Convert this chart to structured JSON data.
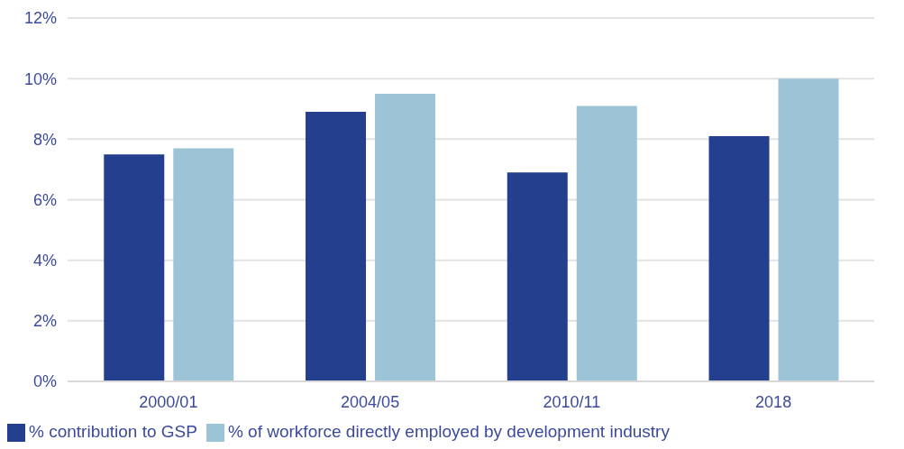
{
  "chart_data": {
    "type": "bar",
    "categories": [
      "2000/01",
      "2004/05",
      "2010/11",
      "2018"
    ],
    "series": [
      {
        "name": "% contribution to GSP",
        "color": "#243f8e",
        "values": [
          7.5,
          8.9,
          6.9,
          8.1
        ]
      },
      {
        "name": "% of workforce directly employed by development industry",
        "color": "#9cc4d6",
        "values": [
          7.7,
          9.5,
          9.1,
          10.0
        ]
      }
    ],
    "ylim": [
      0,
      12
    ],
    "yticks": [
      {
        "value": 0,
        "label": "0%"
      },
      {
        "value": 2,
        "label": "2%"
      },
      {
        "value": 4,
        "label": "4%"
      },
      {
        "value": 6,
        "label": "6%"
      },
      {
        "value": 8,
        "label": "8%"
      },
      {
        "value": 10,
        "label": "10%"
      },
      {
        "value": 12,
        "label": "12%"
      }
    ],
    "grid": "y",
    "legend": "bottom left"
  }
}
